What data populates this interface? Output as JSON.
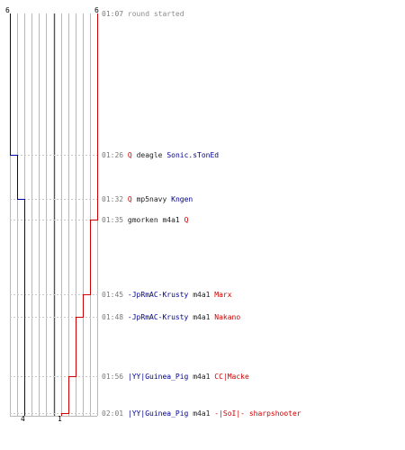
{
  "colors": {
    "blue_team": "#0000aa",
    "red_team": "#cc0000",
    "grid": "#b9b9b9",
    "center_line": "#555555",
    "dash": "#c8c8c8",
    "timestamp": "#7a7a7a"
  },
  "counts": {
    "blue_start": "6",
    "red_start": "6",
    "blue_end": "4",
    "red_end": "1"
  },
  "axis": {
    "max_players": 6
  },
  "timeline": [
    {
      "time": "01:07",
      "blue_alive": 6,
      "red_alive": 6,
      "kind": "start",
      "text": "round started"
    },
    {
      "time": "01:26",
      "blue_alive": 5,
      "red_alive": 6,
      "kind": "kill",
      "killer": "Q",
      "killer_team": "red",
      "weapon": "deagle",
      "victim": "Sonic.sTonEd",
      "victim_team": "blue"
    },
    {
      "time": "01:32",
      "blue_alive": 4,
      "red_alive": 6,
      "kind": "kill",
      "killer": "Q",
      "killer_team": "red",
      "weapon": "mp5navy",
      "victim": "Kngen",
      "victim_team": "blue"
    },
    {
      "time": "01:35",
      "blue_alive": 4,
      "red_alive": 5,
      "kind": "kill",
      "killer": "gmorken",
      "killer_team": "plain",
      "weapon": "m4a1",
      "victim": "Q",
      "victim_team": "red"
    },
    {
      "time": "01:45",
      "blue_alive": 4,
      "red_alive": 4,
      "kind": "kill",
      "killer": "-JpRmAC-Krusty",
      "killer_team": "blue",
      "weapon": "m4a1",
      "victim": "Marx",
      "victim_team": "red"
    },
    {
      "time": "01:48",
      "blue_alive": 4,
      "red_alive": 3,
      "kind": "kill",
      "killer": "-JpRmAC-Krusty",
      "killer_team": "blue",
      "weapon": "m4a1",
      "victim": "Nakano",
      "victim_team": "red"
    },
    {
      "time": "01:56",
      "blue_alive": 4,
      "red_alive": 2,
      "kind": "kill",
      "killer": "|YY|Guinea_Pig",
      "killer_team": "blue",
      "weapon": "m4a1",
      "victim": "CC|Macke",
      "victim_team": "red"
    },
    {
      "time": "02:01",
      "blue_alive": 4,
      "red_alive": 1,
      "kind": "kill",
      "killer": "|YY|Guinea_Pig",
      "killer_team": "blue",
      "weapon": "m4a1",
      "victim": "-|SoI|- sharpshooter",
      "victim_team": "red"
    }
  ]
}
